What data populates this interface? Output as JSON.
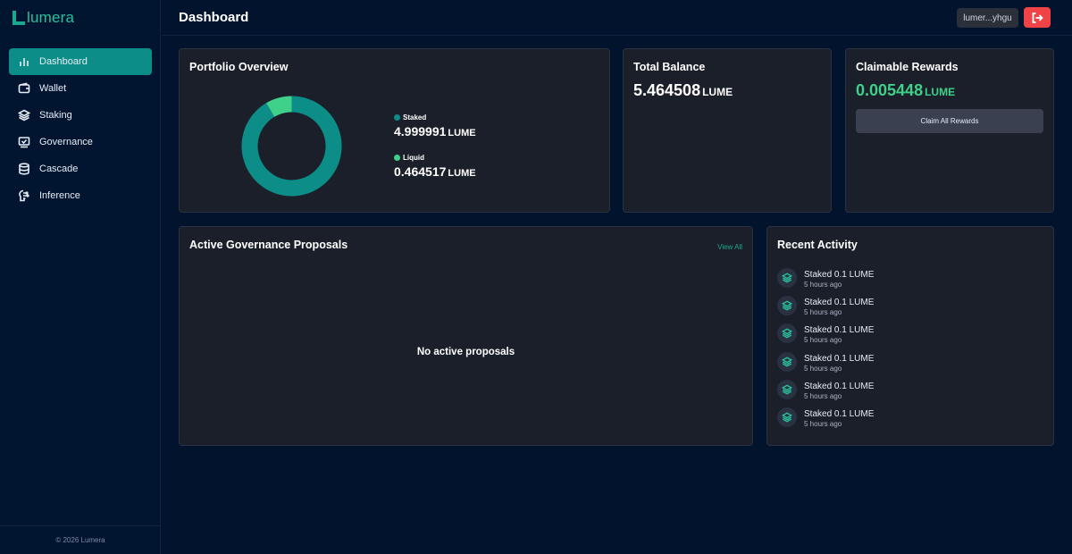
{
  "app": {
    "logo_text": "lumera",
    "footer": "© 2026 Lumera"
  },
  "sidebar": {
    "items": [
      {
        "label": "Dashboard",
        "icon": "bar-chart-icon",
        "active": true
      },
      {
        "label": "Wallet",
        "icon": "wallet-icon"
      },
      {
        "label": "Staking",
        "icon": "layers-icon"
      },
      {
        "label": "Governance",
        "icon": "governance-icon"
      },
      {
        "label": "Cascade",
        "icon": "database-icon"
      },
      {
        "label": "Inference",
        "icon": "brain-icon"
      }
    ]
  },
  "header": {
    "title": "Dashboard",
    "address": "lumer...yhgu",
    "logout_icon": "logout-icon"
  },
  "portfolio": {
    "title": "Portfolio Overview",
    "staked": {
      "label": "Staked",
      "value": "4.999991",
      "unit": "LUME",
      "color": "#0c8d87",
      "amount": 4.999991
    },
    "liquid": {
      "label": "Liquid",
      "value": "0.464517",
      "unit": "LUME",
      "color": "#3fd08a",
      "amount": 0.464517
    }
  },
  "balance": {
    "title": "Total Balance",
    "value": "5.464508",
    "unit": "LUME"
  },
  "rewards": {
    "title": "Claimable Rewards",
    "value": "0.005448",
    "unit": "LUME",
    "button": "Claim All Rewards",
    "value_color": "#3fd08a"
  },
  "proposals": {
    "title": "Active Governance Proposals",
    "view_all": "View All",
    "empty": "No active proposals"
  },
  "activity": {
    "title": "Recent Activity",
    "items": [
      {
        "title": "Staked 0.1 LUME",
        "time": "5 hours ago"
      },
      {
        "title": "Staked 0.1 LUME",
        "time": "5 hours ago"
      },
      {
        "title": "Staked 0.1 LUME",
        "time": "5 hours ago"
      },
      {
        "title": "Staked 0.1 LUME",
        "time": "5 hours ago"
      },
      {
        "title": "Staked 0.1 LUME",
        "time": "5 hours ago"
      },
      {
        "title": "Staked 0.1 LUME",
        "time": "5 hours ago"
      }
    ]
  },
  "colors": {
    "accent": "#0c8d87",
    "background": "#02132e",
    "card": "#1b1f29",
    "danger": "#ef4348"
  }
}
